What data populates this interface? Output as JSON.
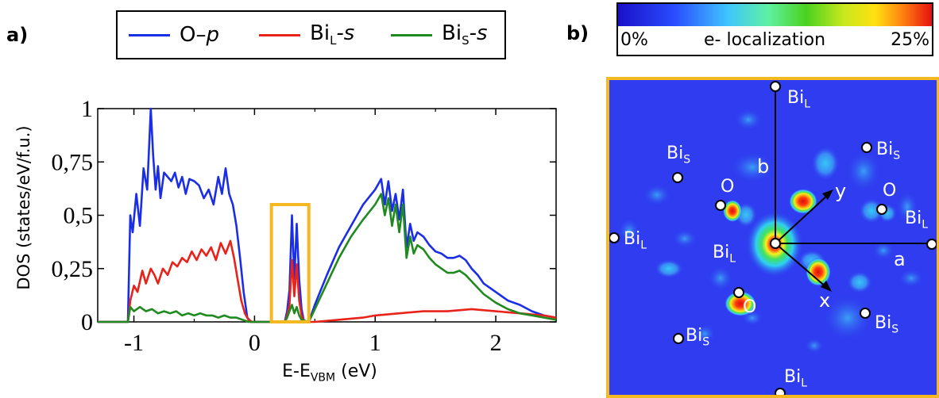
{
  "panel_a": {
    "label": "a)",
    "legend": [
      {
        "name": "O–p",
        "color": "#1a2ee8"
      },
      {
        "name": "Bi_L-s",
        "color": "#e8231a"
      },
      {
        "name": "Bi_S-s",
        "color": "#1f8a1f"
      }
    ],
    "legend_text": {
      "o_main": "O–",
      "o_ital": "p",
      "bil_main": "Bi",
      "bil_sub": "L",
      "bil_ital": "-s",
      "bis_main": "Bi",
      "bis_sub": "S",
      "bis_ital": "-s"
    },
    "ylabel": "DOS (states/eV/f.u.)",
    "xlabel_main": "E-E",
    "xlabel_sub": "VBM",
    "xlabel_unit": " (eV)",
    "highlight_color": "#f5b820"
  },
  "panel_b": {
    "label": "b)",
    "colorbar": {
      "min_label": "0%",
      "max_label": "25%",
      "title": "e- localization"
    },
    "atoms": {
      "bil_top": {
        "main": "Bi",
        "sub": "L"
      },
      "bis_ul": {
        "main": "Bi",
        "sub": "S"
      },
      "bis_ur": {
        "main": "Bi",
        "sub": "S"
      },
      "o_left": {
        "main": "O",
        "sub": ""
      },
      "o_right": {
        "main": "O",
        "sub": ""
      },
      "bil_left": {
        "main": "Bi",
        "sub": "L"
      },
      "bil_center": {
        "main": "Bi",
        "sub": "L"
      },
      "bil_right": {
        "main": "Bi",
        "sub": "L"
      },
      "o_bottom": {
        "main": "O",
        "sub": ""
      },
      "bis_br": {
        "main": "Bi",
        "sub": "S"
      },
      "bis_bl": {
        "main": "Bi",
        "sub": "S"
      },
      "bil_bottom": {
        "main": "Bi",
        "sub": "L"
      }
    },
    "axes": {
      "b": "b",
      "a": "a",
      "x": "x",
      "y": "y"
    }
  },
  "chart_data": {
    "type": "line",
    "title": "",
    "xlabel": "E-E_VBM (eV)",
    "ylabel": "DOS (states/eV/f.u.)",
    "xlim": [
      -1.3,
      2.5
    ],
    "ylim": [
      0,
      1
    ],
    "xticks": [
      -1,
      0,
      1,
      2
    ],
    "xtick_labels": [
      "-1",
      "0",
      "1",
      "2"
    ],
    "yticks": [
      0,
      0.25,
      0.5,
      0.75,
      1
    ],
    "ytick_labels": [
      "0",
      "0,25",
      "0,5",
      "0,75",
      "1"
    ],
    "legend_position": "top",
    "highlight_box_x": [
      0.14,
      0.45
    ],
    "series": [
      {
        "name": "O–p",
        "color": "#1a2ee8",
        "x": [
          -1.3,
          -1.05,
          -1.03,
          -1.01,
          -0.98,
          -0.95,
          -0.92,
          -0.89,
          -0.86,
          -0.84,
          -0.82,
          -0.8,
          -0.78,
          -0.75,
          -0.72,
          -0.69,
          -0.66,
          -0.63,
          -0.6,
          -0.57,
          -0.54,
          -0.5,
          -0.46,
          -0.42,
          -0.38,
          -0.34,
          -0.3,
          -0.27,
          -0.24,
          -0.21,
          -0.18,
          -0.15,
          -0.12,
          -0.09,
          -0.06,
          -0.03,
          0.0,
          0.1,
          0.25,
          0.27,
          0.29,
          0.31,
          0.33,
          0.35,
          0.37,
          0.39,
          0.41,
          0.43,
          0.45,
          0.5,
          0.6,
          0.7,
          0.8,
          0.9,
          1.0,
          1.05,
          1.08,
          1.11,
          1.14,
          1.17,
          1.2,
          1.23,
          1.26,
          1.29,
          1.32,
          1.35,
          1.4,
          1.45,
          1.5,
          1.55,
          1.6,
          1.65,
          1.7,
          1.75,
          1.8,
          1.85,
          1.9,
          2.0,
          2.1,
          2.2,
          2.3,
          2.4,
          2.5
        ],
        "y": [
          0,
          0,
          0.5,
          0.42,
          0.6,
          0.45,
          0.72,
          0.62,
          1.0,
          0.78,
          0.62,
          0.73,
          0.58,
          0.7,
          0.68,
          0.66,
          0.7,
          0.63,
          0.68,
          0.6,
          0.67,
          0.66,
          0.64,
          0.58,
          0.62,
          0.55,
          0.68,
          0.6,
          0.72,
          0.6,
          0.55,
          0.45,
          0.3,
          0.14,
          0.02,
          0.0,
          0,
          0,
          0,
          0.05,
          0.15,
          0.5,
          0.2,
          0.46,
          0.2,
          0.06,
          0.0,
          0,
          0,
          0.08,
          0.22,
          0.35,
          0.45,
          0.55,
          0.62,
          0.67,
          0.55,
          0.66,
          0.52,
          0.6,
          0.48,
          0.62,
          0.35,
          0.46,
          0.38,
          0.42,
          0.4,
          0.36,
          0.33,
          0.32,
          0.3,
          0.3,
          0.31,
          0.29,
          0.25,
          0.22,
          0.18,
          0.14,
          0.1,
          0.08,
          0.05,
          0.03,
          0.02
        ]
      },
      {
        "name": "Bi_L-s",
        "color": "#e8231a",
        "x": [
          -1.3,
          -1.05,
          -1.03,
          -1.0,
          -0.97,
          -0.93,
          -0.9,
          -0.86,
          -0.83,
          -0.8,
          -0.76,
          -0.72,
          -0.68,
          -0.64,
          -0.6,
          -0.56,
          -0.52,
          -0.48,
          -0.44,
          -0.4,
          -0.36,
          -0.32,
          -0.28,
          -0.24,
          -0.2,
          -0.17,
          -0.14,
          -0.11,
          -0.08,
          -0.05,
          -0.02,
          0.0,
          0.1,
          0.25,
          0.27,
          0.29,
          0.31,
          0.33,
          0.35,
          0.37,
          0.39,
          0.41,
          0.45,
          0.5,
          0.7,
          0.9,
          1.0,
          1.2,
          1.4,
          1.6,
          1.8,
          2.0,
          2.2,
          2.4,
          2.5
        ],
        "y": [
          0,
          0,
          0.1,
          0.17,
          0.14,
          0.24,
          0.18,
          0.25,
          0.22,
          0.18,
          0.25,
          0.22,
          0.28,
          0.26,
          0.3,
          0.28,
          0.33,
          0.29,
          0.34,
          0.31,
          0.35,
          0.29,
          0.37,
          0.32,
          0.38,
          0.3,
          0.2,
          0.1,
          0.04,
          0.01,
          0.0,
          0,
          0,
          0,
          0.03,
          0.08,
          0.29,
          0.12,
          0.27,
          0.1,
          0.03,
          0.0,
          0,
          0,
          0.01,
          0.02,
          0.03,
          0.04,
          0.05,
          0.05,
          0.06,
          0.05,
          0.04,
          0.03,
          0.02
        ]
      },
      {
        "name": "Bi_S-s",
        "color": "#1f8a1f",
        "x": [
          -1.3,
          -1.05,
          -1.03,
          -1.0,
          -0.95,
          -0.9,
          -0.85,
          -0.8,
          -0.75,
          -0.7,
          -0.65,
          -0.6,
          -0.55,
          -0.5,
          -0.45,
          -0.4,
          -0.35,
          -0.3,
          -0.25,
          -0.2,
          -0.15,
          -0.1,
          -0.05,
          0.0,
          0.1,
          0.25,
          0.27,
          0.29,
          0.31,
          0.33,
          0.35,
          0.37,
          0.39,
          0.45,
          0.5,
          0.6,
          0.7,
          0.8,
          0.9,
          1.0,
          1.05,
          1.08,
          1.11,
          1.14,
          1.17,
          1.2,
          1.23,
          1.26,
          1.29,
          1.32,
          1.35,
          1.4,
          1.45,
          1.5,
          1.55,
          1.6,
          1.65,
          1.7,
          1.75,
          1.8,
          1.85,
          1.9,
          2.0,
          2.1,
          2.2,
          2.3,
          2.4,
          2.5
        ],
        "y": [
          0,
          0,
          0.07,
          0.05,
          0.07,
          0.05,
          0.06,
          0.04,
          0.05,
          0.04,
          0.05,
          0.03,
          0.04,
          0.03,
          0.04,
          0.03,
          0.03,
          0.02,
          0.03,
          0.02,
          0.02,
          0.01,
          0.0,
          0,
          0,
          0,
          0.02,
          0.05,
          0.08,
          0.04,
          0.07,
          0.03,
          0.01,
          0,
          0.06,
          0.18,
          0.3,
          0.4,
          0.48,
          0.55,
          0.6,
          0.5,
          0.58,
          0.45,
          0.55,
          0.42,
          0.55,
          0.3,
          0.4,
          0.32,
          0.36,
          0.34,
          0.3,
          0.27,
          0.25,
          0.23,
          0.23,
          0.24,
          0.22,
          0.19,
          0.16,
          0.13,
          0.09,
          0.06,
          0.04,
          0.03,
          0.02,
          0.01
        ]
      }
    ]
  }
}
